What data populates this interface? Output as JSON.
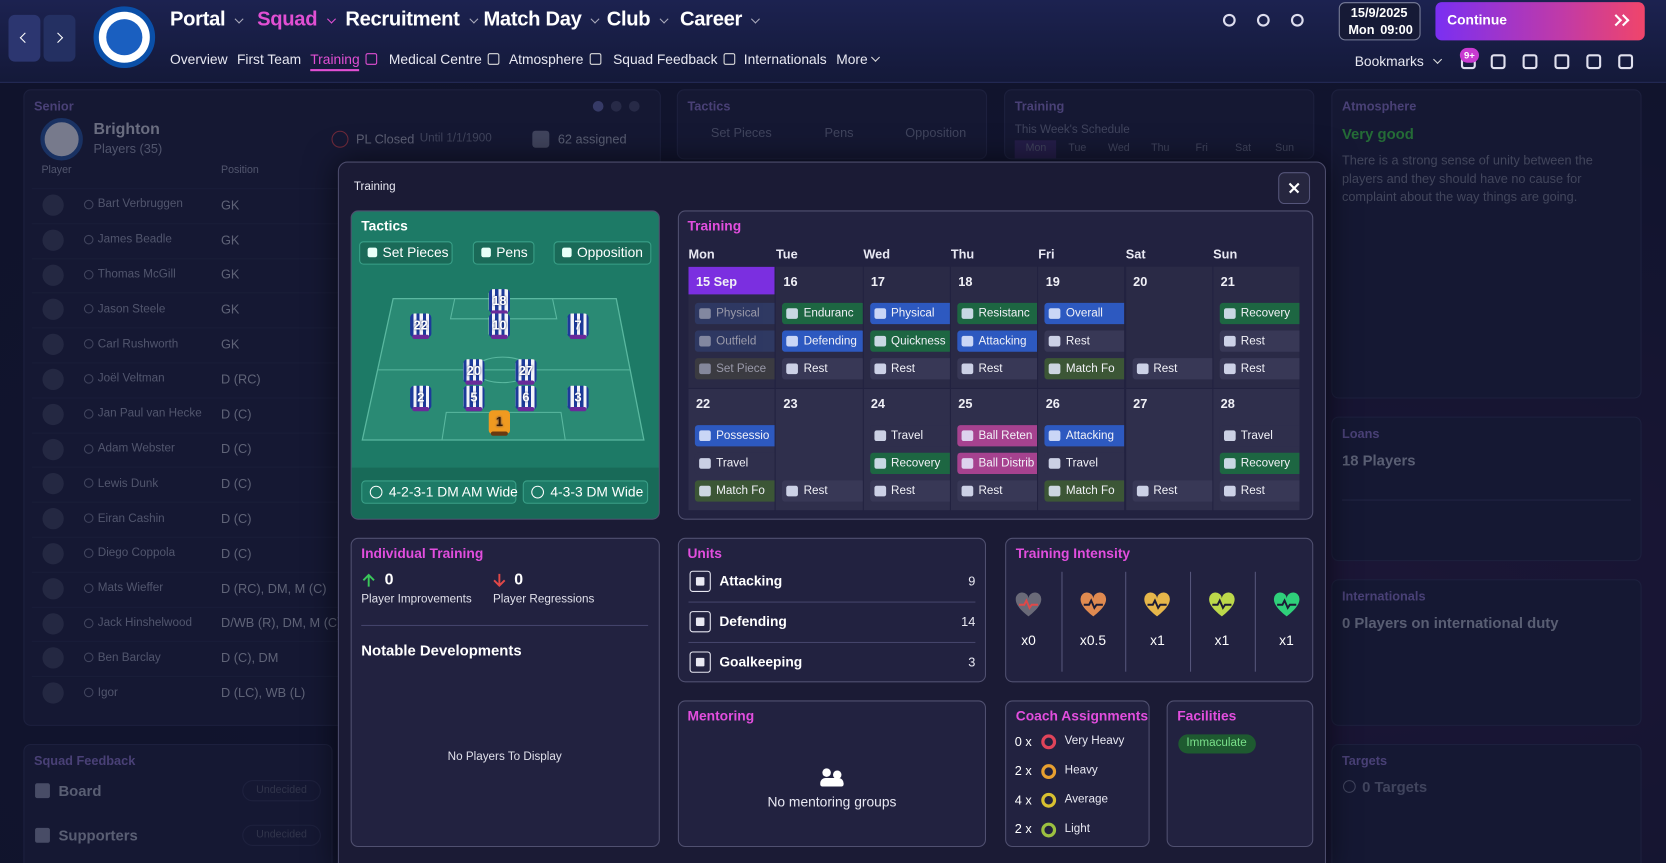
{
  "nav": {
    "tabs": [
      "Portal",
      "Squad",
      "Recruitment",
      "Match Day",
      "Club",
      "Career"
    ],
    "subtabs": [
      "Overview",
      "First Team",
      "Training",
      "Medical Centre",
      "Atmosphere",
      "Squad Feedback",
      "Internationals",
      "More"
    ],
    "date": "15/9/2025",
    "day": "Mon",
    "time": "09:00",
    "continue": "Continue",
    "bookmarks": "Bookmarks",
    "badge": "9+"
  },
  "senior": {
    "title": "Senior",
    "club": "Brighton",
    "players": "Players (35)",
    "status": "PL Closed",
    "until": "Until 1/1/1900",
    "assigned": "62 assigned",
    "columns": [
      "Player",
      "Position"
    ],
    "rows": [
      [
        "Bart Verbruggen",
        "GK"
      ],
      [
        "James Beadle",
        "GK"
      ],
      [
        "Thomas McGill",
        "GK"
      ],
      [
        "Jason Steele",
        "GK"
      ],
      [
        "Carl Rushworth",
        "GK"
      ],
      [
        "Joël Veltman",
        "D (RC)"
      ],
      [
        "Jan Paul van Hecke",
        "D (C)"
      ],
      [
        "Adam Webster",
        "D (C)"
      ],
      [
        "Lewis Dunk",
        "D (C)"
      ],
      [
        "Eiran Cashin",
        "D (C)"
      ],
      [
        "Diego Coppola",
        "D (C)"
      ],
      [
        "Mats Wieffer",
        "D (RC), DM, M (C)"
      ],
      [
        "Jack Hinshelwood",
        "D/WB (R), DM, M (C)"
      ],
      [
        "Ben Barclay",
        "D (C), DM"
      ],
      [
        "Igor",
        "D (LC), WB (L)"
      ]
    ]
  },
  "bg_tactics": {
    "title": "Tactics",
    "buttons": [
      "Set Pieces",
      "Pens",
      "Opposition"
    ]
  },
  "bg_training": {
    "title": "Training",
    "subtitle": "This Week's Schedule",
    "days": [
      "Mon",
      "Tue",
      "Wed",
      "Thu",
      "Fri",
      "Sat",
      "Sun"
    ]
  },
  "atmosphere": {
    "title": "Atmosphere",
    "rating": "Very good",
    "text": "There is a strong sense of unity between the players and they should have no cause for complaint about the way things are going."
  },
  "loans": {
    "title": "Loans",
    "text": "18 Players"
  },
  "internationals": {
    "title": "Internationals",
    "text": "0 Players on international duty"
  },
  "targets": {
    "title": "Targets",
    "text": "0 Targets"
  },
  "squad_feedback": {
    "title": "Squad Feedback",
    "items": [
      {
        "label": "Board",
        "status": "Undecided"
      },
      {
        "label": "Supporters",
        "status": "Undecided"
      }
    ]
  },
  "modal": {
    "title": "Training",
    "tactics": {
      "title": "Tactics",
      "buttons": [
        "Set Pieces",
        "Pens",
        "Opposition"
      ],
      "shirts": [
        22,
        18,
        10,
        7,
        20,
        27,
        2,
        5,
        6,
        3,
        1
      ],
      "formations": [
        "4-2-3-1 DM AM Wide",
        "4-3-3 DM Wide"
      ]
    },
    "calendar": {
      "title": "Training",
      "days": [
        "Mon",
        "Tue",
        "Wed",
        "Thu",
        "Fri",
        "Sat",
        "Sun"
      ],
      "weeks": [
        [
          {
            "date": "15 Sep",
            "sessions": [
              {
                "label": "Physical",
                "color": "#33457a"
              },
              {
                "label": "Outfield",
                "color": "#33457a"
              },
              {
                "label": "Set Piece",
                "color": "#4a4a3e"
              }
            ]
          },
          {
            "date": "16",
            "sessions": [
              {
                "label": "Enduranc",
                "color": "#1d6642"
              },
              {
                "label": "Defending",
                "color": "#2d59c0"
              },
              {
                "label": "Rest",
                "color": "#383856"
              }
            ]
          },
          {
            "date": "17",
            "sessions": [
              {
                "label": "Physical",
                "color": "#2d59c0"
              },
              {
                "label": "Quickness",
                "color": "#1d6642"
              },
              {
                "label": "Rest",
                "color": "#383856"
              }
            ]
          },
          {
            "date": "18",
            "sessions": [
              {
                "label": "Resistanc",
                "color": "#1d6642"
              },
              {
                "label": "Attacking",
                "color": "#2d59c0"
              },
              {
                "label": "Rest",
                "color": "#383856"
              }
            ]
          },
          {
            "date": "19",
            "sessions": [
              {
                "label": "Overall",
                "color": "#2d59c0"
              },
              {
                "label": "Rest",
                "color": "#383856"
              },
              {
                "label": "Match Fo",
                "color": "#3c5636"
              }
            ]
          },
          {
            "date": "20",
            "sessions": [
              {
                "label": "Rest",
                "color": "#383856"
              }
            ]
          },
          {
            "date": "21",
            "sessions": [
              {
                "label": "Recovery",
                "color": "#1d6642"
              },
              {
                "label": "Rest",
                "color": "#383856"
              },
              {
                "label": "Rest",
                "color": "#383856"
              }
            ]
          }
        ],
        [
          {
            "date": "22",
            "sessions": [
              {
                "label": "Possessio",
                "color": "#2d59c0"
              },
              {
                "label": "Travel",
                "color": "#2f2f4c"
              },
              {
                "label": "Match Fo",
                "color": "#3c5636"
              }
            ]
          },
          {
            "date": "23",
            "sessions": [
              {
                "label": "Rest",
                "color": "#383856"
              }
            ]
          },
          {
            "date": "24",
            "sessions": [
              {
                "label": "Travel",
                "color": "#2f2f4c"
              },
              {
                "label": "Recovery",
                "color": "#1d6642"
              },
              {
                "label": "Rest",
                "color": "#383856"
              }
            ]
          },
          {
            "date": "25",
            "sessions": [
              {
                "label": "Ball Reten",
                "color": "#a6428f"
              },
              {
                "label": "Ball Distrib",
                "color": "#a6428f"
              },
              {
                "label": "Rest",
                "color": "#383856"
              }
            ]
          },
          {
            "date": "26",
            "sessions": [
              {
                "label": "Attacking",
                "color": "#2d59c0"
              },
              {
                "label": "Travel",
                "color": "#2f2f4c"
              },
              {
                "label": "Match Fo",
                "color": "#3c5636"
              }
            ]
          },
          {
            "date": "27",
            "sessions": [
              {
                "label": "Rest",
                "color": "#383856"
              }
            ]
          },
          {
            "date": "28",
            "sessions": [
              {
                "label": "Travel",
                "color": "#2f2f4c"
              },
              {
                "label": "Recovery",
                "color": "#1d6642"
              },
              {
                "label": "Rest",
                "color": "#383856"
              }
            ]
          }
        ]
      ]
    },
    "individual": {
      "title": "Individual Training",
      "improvements": 0,
      "improvements_label": "Player Improvements",
      "regressions": 0,
      "regressions_label": "Player Regressions",
      "notable": "Notable Developments",
      "empty": "No Players To Display"
    },
    "units": {
      "title": "Units",
      "rows": [
        {
          "name": "Attacking",
          "count": 9
        },
        {
          "name": "Defending",
          "count": 14
        },
        {
          "name": "Goalkeeping",
          "count": 3
        }
      ]
    },
    "intensity": {
      "title": "Training Intensity",
      "levels": [
        {
          "label": "x0",
          "color": "#6a6a78"
        },
        {
          "label": "x0.5",
          "color": "#e08a50"
        },
        {
          "label": "x1",
          "color": "#e6b64a"
        },
        {
          "label": "x1",
          "color": "#bcd84a"
        },
        {
          "label": "x1",
          "color": "#2fd07a"
        }
      ]
    },
    "mentoring": {
      "title": "Mentoring",
      "empty": "No mentoring groups"
    },
    "coach": {
      "title": "Coach Assignments",
      "rows": [
        {
          "count": "0 x",
          "label": "Very Heavy",
          "color": "#e0445a"
        },
        {
          "count": "2 x",
          "label": "Heavy",
          "color": "#e8a030"
        },
        {
          "count": "4 x",
          "label": "Average",
          "color": "#d8c030"
        },
        {
          "count": "2 x",
          "label": "Light",
          "color": "#9cc040"
        }
      ]
    },
    "facilities": {
      "title": "Facilities",
      "badge": "Immaculate"
    }
  }
}
